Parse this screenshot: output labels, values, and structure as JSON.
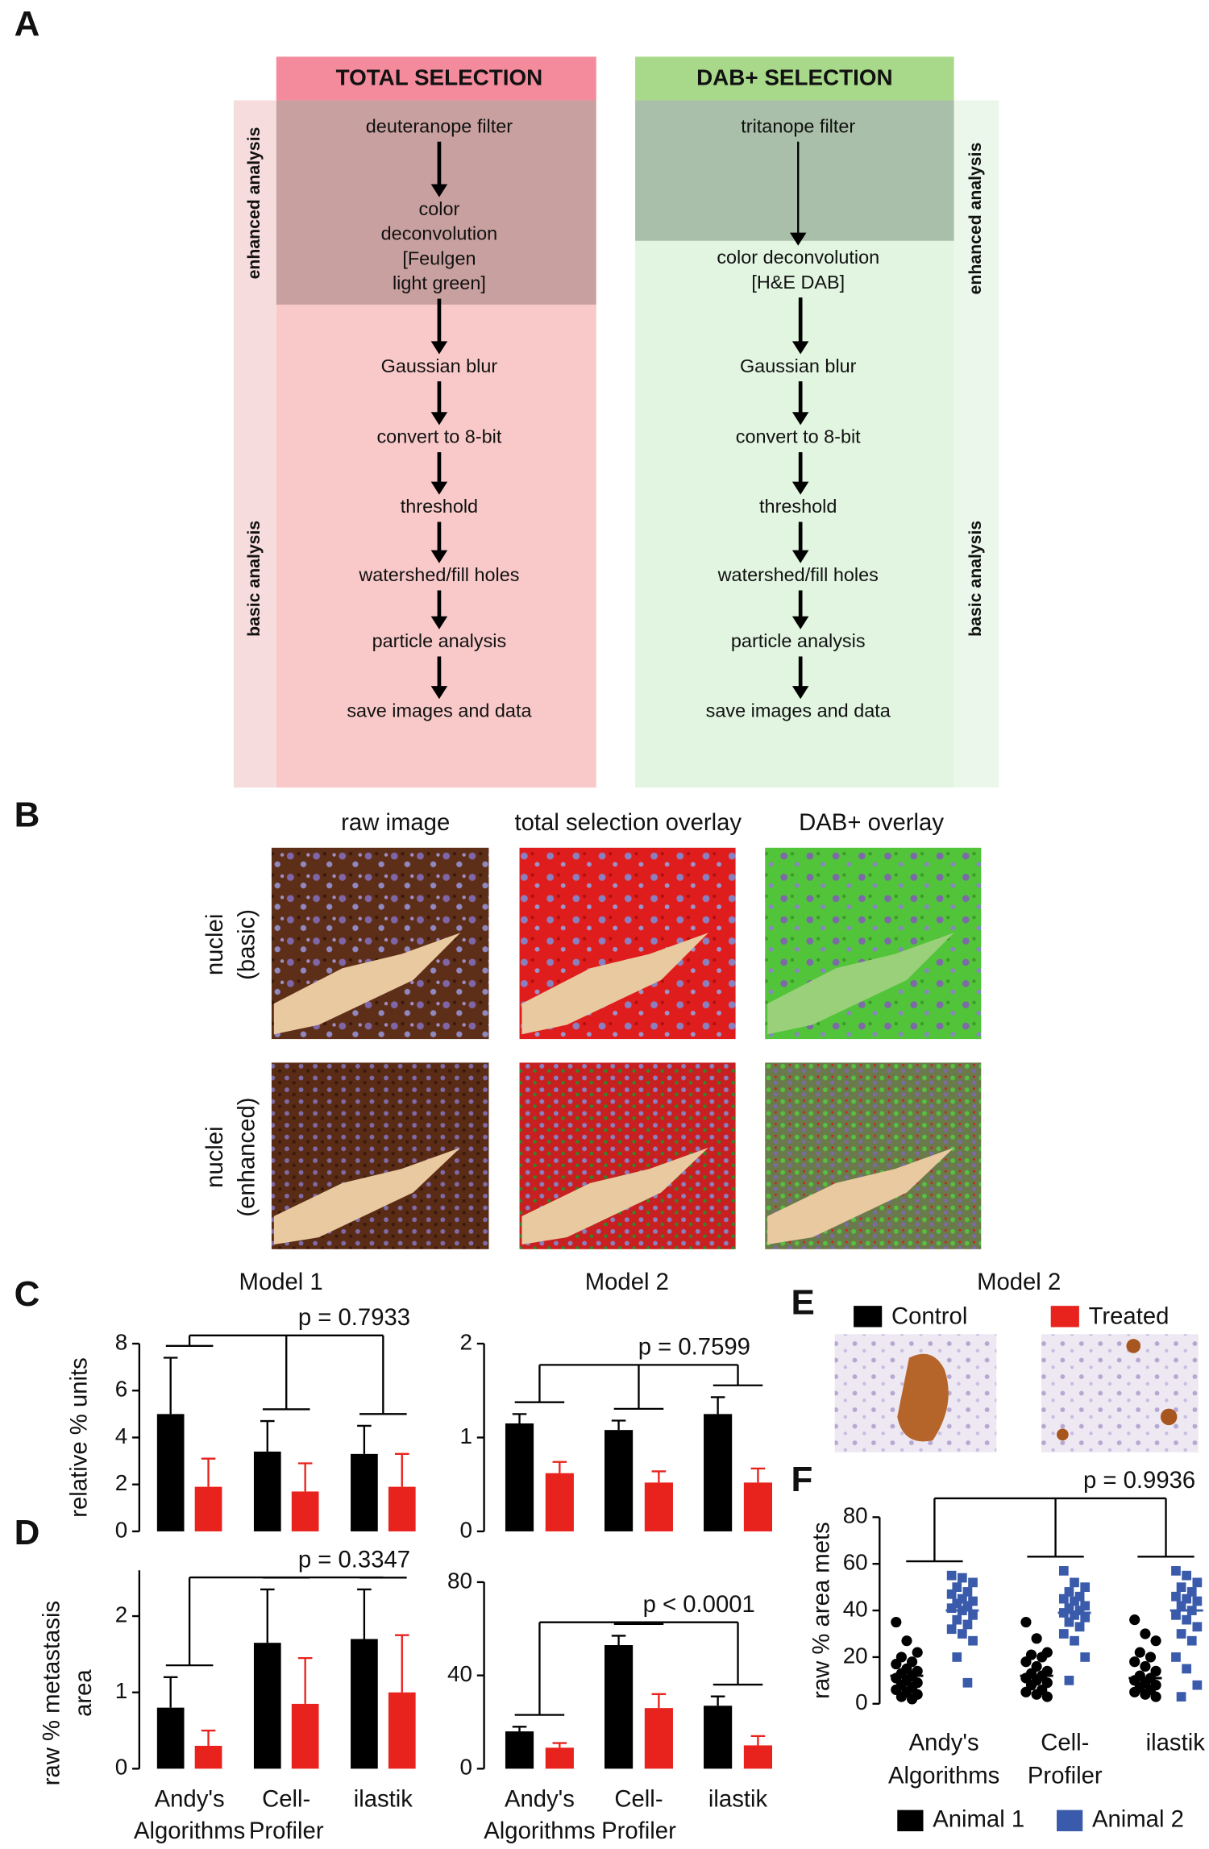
{
  "panel_labels": [
    "A",
    "B",
    "C",
    "D",
    "E",
    "F"
  ],
  "flowchart": {
    "columns": [
      {
        "title": "TOTAL SELECTION",
        "steps": [
          [
            "deuteranope filter"
          ],
          [
            "color",
            "deconvolution",
            "[Feulgen",
            "light green]"
          ],
          [
            "Gaussian blur"
          ],
          [
            "convert to 8-bit"
          ],
          [
            "threshold"
          ],
          [
            "watershed/fill holes"
          ],
          [
            "particle analysis"
          ],
          [
            "save images and data"
          ]
        ]
      },
      {
        "title": "DAB+  SELECTION",
        "steps": [
          [
            "tritanope filter"
          ],
          [
            "color deconvolution",
            "[H&E DAB]"
          ],
          [
            "Gaussian blur"
          ],
          [
            "convert to 8-bit"
          ],
          [
            "threshold"
          ],
          [
            "watershed/fill holes"
          ],
          [
            "particle analysis"
          ],
          [
            "save images and data"
          ]
        ]
      }
    ],
    "side_labels": [
      "enhanced  analysis",
      "basic analysis"
    ]
  },
  "micrographs": {
    "columns": [
      "raw image",
      "total selection overlay",
      "DAB+ overlay"
    ],
    "rows": [
      [
        "nuclei",
        "(basic)"
      ],
      [
        "nuclei",
        "(enhanced)"
      ]
    ]
  },
  "panel_e": {
    "title": "Model 2",
    "legend": [
      {
        "name": "Control",
        "color": "#000000"
      },
      {
        "name": "Treated",
        "color": "#e8221c"
      }
    ]
  },
  "chart_data": [
    {
      "type": "bar",
      "title": "Model 1",
      "ylabel": [
        "relative % units"
      ],
      "series": [
        {
          "color": "#000000",
          "values": [
            5.0,
            3.4,
            3.3
          ],
          "errors": [
            2.4,
            1.3,
            1.2
          ]
        },
        {
          "color": "#e8221c",
          "values": [
            1.9,
            1.7,
            1.9
          ],
          "errors": [
            1.2,
            1.2,
            1.4
          ]
        }
      ],
      "ylim": [
        0,
        8
      ],
      "yticks": [
        0,
        2,
        4,
        6,
        8
      ],
      "annotation": "p = 0.7933"
    },
    {
      "type": "bar",
      "title": "Model 2",
      "series": [
        {
          "color": "#000000",
          "values": [
            1.15,
            1.08,
            1.25
          ],
          "errors": [
            0.1,
            0.1,
            0.18
          ]
        },
        {
          "color": "#e8221c",
          "values": [
            0.62,
            0.52,
            0.52
          ],
          "errors": [
            0.12,
            0.12,
            0.15
          ]
        }
      ],
      "ylim": [
        0,
        2
      ],
      "yticks": [
        0,
        1,
        2
      ],
      "annotation": "p = 0.7599"
    },
    {
      "type": "bar",
      "ylabel": [
        "raw % metastasis",
        "area"
      ],
      "categories": [
        [
          "Andy's",
          "Algorithms"
        ],
        [
          "Cell-",
          "Profiler"
        ],
        [
          "ilastik"
        ]
      ],
      "series": [
        {
          "color": "#000000",
          "values": [
            0.8,
            1.65,
            1.7
          ],
          "errors": [
            0.4,
            0.7,
            0.65
          ]
        },
        {
          "color": "#e8221c",
          "values": [
            0.3,
            0.85,
            1.0
          ],
          "errors": [
            0.2,
            0.6,
            0.75
          ]
        }
      ],
      "ylim": [
        0,
        2.6
      ],
      "yticks": [
        0,
        1,
        2
      ],
      "annotation": "p = 0.3347"
    },
    {
      "type": "bar",
      "categories": [
        [
          "Andy's",
          "Algorithms"
        ],
        [
          "Cell-",
          "Profiler"
        ],
        [
          "ilastik"
        ]
      ],
      "series": [
        {
          "color": "#000000",
          "values": [
            16,
            53,
            27
          ],
          "errors": [
            2,
            4,
            4
          ]
        },
        {
          "color": "#e8221c",
          "values": [
            9,
            26,
            10
          ],
          "errors": [
            2,
            6,
            4
          ]
        }
      ],
      "ylim": [
        0,
        80
      ],
      "yticks": [
        0,
        40,
        80
      ],
      "annotation": "p < 0.0001"
    },
    {
      "type": "scatter",
      "ylabel": [
        "raw % area mets"
      ],
      "categories": [
        [
          "Andy's",
          "Algorithms"
        ],
        [
          "Cell-",
          "Profiler"
        ],
        [
          "ilastik"
        ]
      ],
      "series": [
        {
          "name": "Animal 1",
          "color": "#000000",
          "marker": "circle",
          "values": [
            [
              35,
              27,
              22,
              20,
              18,
              17,
              15,
              14,
              13,
              12,
              11,
              10,
              9,
              8,
              7,
              6,
              5,
              4,
              3,
              2
            ],
            [
              35,
              28,
              22,
              21,
              20,
              18,
              16,
              14,
              13,
              12,
              11,
              10,
              9,
              8,
              6,
              5,
              4,
              3
            ],
            [
              36,
              30,
              27,
              22,
              20,
              18,
              16,
              14,
              12,
              11,
              10,
              9,
              8,
              7,
              6,
              5,
              4,
              3
            ]
          ],
          "means": [
            12,
            12,
            11
          ]
        },
        {
          "name": "Animal 2",
          "color": "#3a5bab",
          "marker": "square",
          "values": [
            [
              55,
              54,
              52,
              50,
              48,
              47,
              45,
              44,
              43,
              42,
              41,
              40,
              38,
              36,
              34,
              32,
              30,
              27,
              20,
              9
            ],
            [
              57,
              52,
              50,
              48,
              46,
              45,
              44,
              42,
              41,
              40,
              39,
              38,
              37,
              35,
              33,
              30,
              27,
              20,
              10
            ],
            [
              57,
              55,
              52,
              50,
              48,
              46,
              45,
              44,
              42,
              40,
              38,
              36,
              33,
              30,
              27,
              20,
              15,
              8,
              3
            ]
          ],
          "means": [
            40,
            39,
            40
          ]
        }
      ],
      "ylim": [
        0,
        80
      ],
      "yticks": [
        0,
        20,
        40,
        60,
        80
      ],
      "annotation": "p = 0.9936"
    }
  ]
}
